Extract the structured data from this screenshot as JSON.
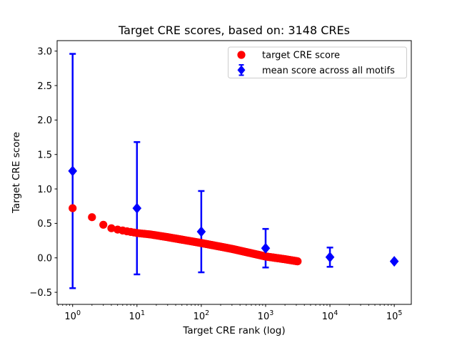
{
  "figure": {
    "title": "Target CRE scores, based on: 3148 CREs",
    "xlabel": "Target CRE rank (log)",
    "ylabel": "Target CRE score"
  },
  "chart_data": {
    "type": "scatter",
    "title": "Target CRE scores, based on: 3148 CREs",
    "xlabel": "Target CRE rank (log)",
    "ylabel": "Target CRE score",
    "x_scale": "log",
    "xlim": [
      0.574,
      184000
    ],
    "ylim": [
      -0.675,
      3.152
    ],
    "y_ticks": [
      -0.5,
      0.0,
      0.5,
      1.0,
      1.5,
      2.0,
      2.5,
      3.0
    ],
    "x_tick_exponents": [
      0,
      1,
      2,
      3,
      4,
      5
    ],
    "grid": false,
    "legend_position": "upper right",
    "colors": {
      "target": "#ff0000",
      "mean": "#0000ff",
      "legend_border": "#cccccc"
    },
    "legend": [
      {
        "label": "target CRE score",
        "marker": "red-circle",
        "color": "#ff0000"
      },
      {
        "label": "mean score across all motifs",
        "marker": "blue-diamond-errorbar",
        "color": "#0000ff"
      }
    ],
    "series": [
      {
        "name": "target CRE score",
        "type": "scatter",
        "marker": "circle",
        "color": "#ff0000",
        "n_points": 3148,
        "anchor_ranks": [
          1,
          2,
          3,
          4,
          5,
          7,
          10,
          16,
          30,
          100,
          300,
          1000,
          2000,
          3148
        ],
        "anchor_scores": [
          0.72,
          0.59,
          0.48,
          0.43,
          0.41,
          0.385,
          0.36,
          0.34,
          0.3,
          0.215,
          0.13,
          0.02,
          -0.02,
          -0.05
        ]
      },
      {
        "name": "mean score across all motifs",
        "type": "errorbar",
        "marker": "diamond",
        "color": "#0000ff",
        "x": [
          1,
          10,
          100,
          1000,
          10000,
          100000
        ],
        "y": [
          1.26,
          0.72,
          0.38,
          0.14,
          0.01,
          -0.05
        ],
        "yerr": [
          1.7,
          0.96,
          0.59,
          0.28,
          0.14,
          0.0
        ]
      }
    ]
  }
}
